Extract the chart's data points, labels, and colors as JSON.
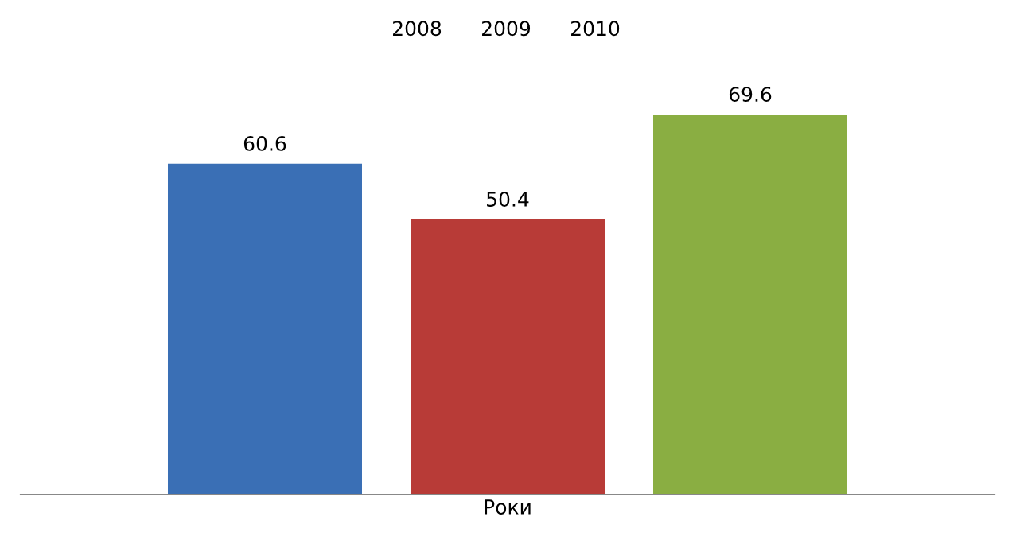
{
  "chart_data": {
    "type": "bar",
    "categories": [
      null,
      null,
      null
    ],
    "xlabel": "Роки",
    "values": [
      60.6,
      50.4,
      69.6
    ],
    "colors": [
      "#3a6fb5",
      "#b83b37",
      "#8aae42"
    ],
    "annotations": [
      "2008",
      "2009",
      "2010"
    ],
    "data_labels": true
  }
}
